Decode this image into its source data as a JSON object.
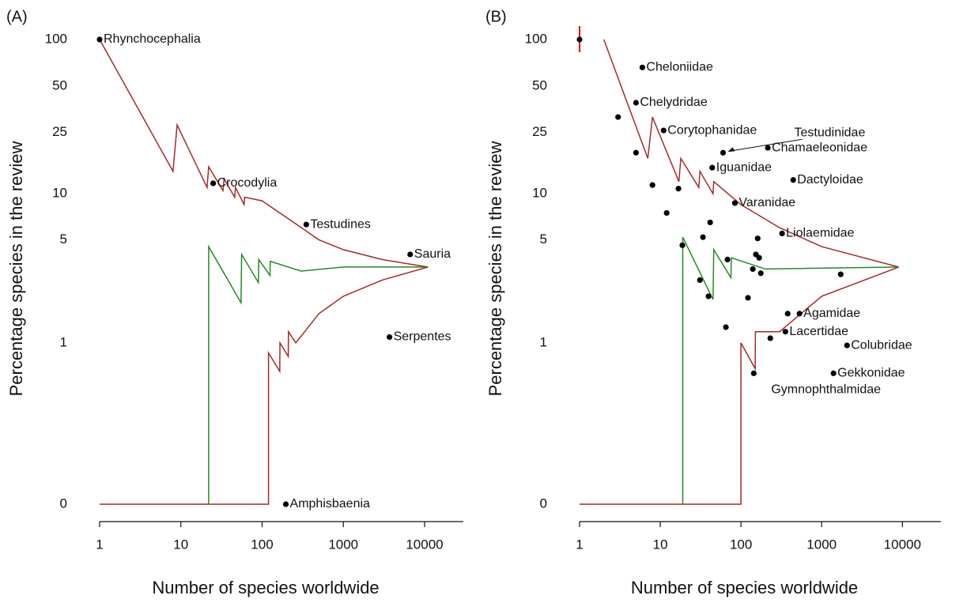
{
  "chart_data": [
    {
      "type": "scatter",
      "panel_label": "(A)",
      "xlabel": "Number of species worldwide",
      "ylabel": "Percentage species in the review",
      "xscale": "log",
      "yscale": "log",
      "xlim": [
        1,
        30000
      ],
      "ylim": [
        0,
        100
      ],
      "xticks": [
        1,
        10,
        100,
        1000,
        10000
      ],
      "yticks": [
        0,
        1,
        5,
        10,
        25,
        50,
        100
      ],
      "lines": [
        {
          "color": "#a52a2a",
          "x": [
            1,
            8,
            9,
            21,
            22,
            33,
            34,
            46,
            47,
            60,
            61,
            100,
            200,
            500,
            1000,
            3000,
            11000
          ],
          "y": [
            100,
            14,
            28,
            11,
            15,
            10.5,
            12.5,
            9.5,
            11,
            8.5,
            9.5,
            9,
            7,
            5,
            4.3,
            3.7,
            3.3
          ]
        },
        {
          "color": "#228b22",
          "x": [
            22,
            22,
            55,
            56,
            90,
            91,
            125,
            126,
            300,
            1000,
            11000
          ],
          "y": [
            0,
            4.5,
            1.9,
            4.0,
            2.6,
            3.7,
            2.9,
            3.6,
            3.1,
            3.3,
            3.3
          ]
        },
        {
          "color": "#a52a2a",
          "x": [
            1,
            120,
            120,
            165,
            166,
            210,
            211,
            260,
            500,
            1000,
            3000,
            11000
          ],
          "y": [
            0,
            0,
            0.85,
            0.62,
            1.0,
            0.8,
            1.2,
            1.0,
            1.6,
            2.1,
            2.7,
            3.3
          ]
        }
      ],
      "points": {
        "color": "#000000",
        "x": [
          1,
          25,
          350,
          6650,
          3700,
          196
        ],
        "y": [
          100,
          11.7,
          6.3,
          4.0,
          1.1,
          0
        ],
        "labels": [
          "Rhynchocephalia",
          "Crocodylia",
          "Testudines",
          "Sauria",
          "Serpentes",
          "Amphisbaenia"
        ]
      }
    },
    {
      "type": "scatter",
      "panel_label": "(B)",
      "xlabel": "Number of species worldwide",
      "ylabel": "Percentage species in the review",
      "xscale": "log",
      "yscale": "log",
      "xlim": [
        1,
        30000
      ],
      "ylim": [
        0,
        100
      ],
      "xticks": [
        1,
        10,
        100,
        1000,
        10000
      ],
      "yticks": [
        0,
        1,
        5,
        10,
        25,
        50,
        100
      ],
      "lines": [
        {
          "color": "#a52a2a",
          "x": [
            2,
            7,
            8,
            17,
            18,
            30,
            31,
            45,
            46,
            100,
            300,
            1000,
            9000
          ],
          "y": [
            100,
            17,
            31.5,
            12,
            17,
            11,
            14,
            10,
            12,
            8.5,
            6,
            4.5,
            3.3
          ]
        },
        {
          "color": "#228b22",
          "x": [
            19,
            19,
            45,
            46,
            75,
            76,
            200,
            9000
          ],
          "y": [
            0,
            5.2,
            2.0,
            4.3,
            2.8,
            3.8,
            3.2,
            3.3
          ]
        },
        {
          "color": "#a52a2a",
          "x": [
            1,
            100,
            100,
            150,
            151,
            300,
            1000,
            9000
          ],
          "y": [
            0,
            0,
            1.0,
            0.65,
            1.2,
            1.2,
            2.1,
            3.3
          ]
        }
      ],
      "points": {
        "color": "#000000",
        "x": [
          6,
          5,
          11,
          60,
          215,
          44,
          444,
          84,
          323,
          531,
          355,
          2060,
          1400,
          144,
          1,
          3,
          5,
          8,
          16.8,
          12,
          18.8,
          33.8,
          41.5,
          31,
          39.6,
          68,
          153,
          161,
          168,
          140,
          176,
          122,
          65,
          231,
          379,
          1720
        ],
        "y": [
          66,
          39,
          25.8,
          18.5,
          19.9,
          14.8,
          12.3,
          8.7,
          5.5,
          1.6,
          1.2,
          0.96,
          0.6,
          0.6,
          100,
          31.5,
          18.5,
          11.4,
          10.8,
          7.5,
          4.6,
          5.2,
          6.5,
          2.7,
          2.1,
          3.7,
          4.0,
          5.1,
          3.8,
          3.2,
          3.0,
          2.05,
          1.29,
          1.08,
          1.6,
          2.95
        ],
        "labels": [
          "Cheloniidae",
          "Chelydridae",
          "Corytophanidae",
          "Testudinidae",
          "Chamaeleonidae",
          "Iguanidae",
          "Dactyloidae",
          "Varanidae",
          "Liolaemidae",
          "Agamidae",
          "Lacertidae",
          "Colubridae",
          "Gekkonidae",
          "Gymnophthalmidae",
          null,
          null,
          null,
          null,
          null,
          null,
          null,
          null,
          null,
          null,
          null,
          null,
          null,
          null,
          null,
          null,
          null,
          null,
          null,
          null,
          null,
          null
        ]
      }
    }
  ]
}
